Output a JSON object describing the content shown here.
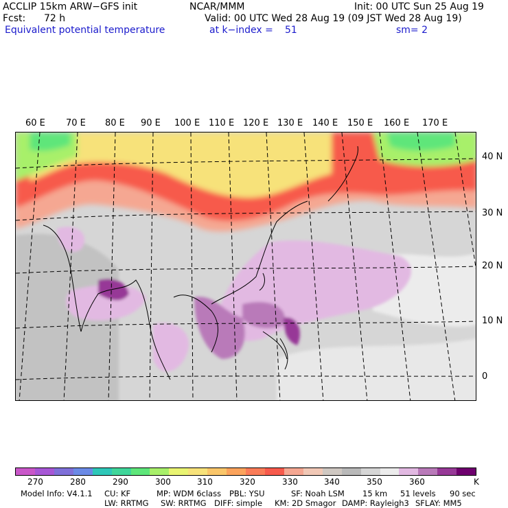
{
  "header": {
    "model_title": "ACCLIP 15km ARW−GFS init",
    "center": "NCAR/MMM",
    "init": "Init: 00 UTC Sun 25 Aug 19",
    "fcst_label": "Fcst:",
    "fcst_value": "72 h",
    "valid": "Valid: 00 UTC Wed 28 Aug 19 (09 JST Wed 28 Aug 19)",
    "field": "Equivalent potential temperature",
    "level": "at k−index =",
    "level_value": "51",
    "smoothing": "sm= 2"
  },
  "map": {
    "longitude_labels": [
      "60 E",
      "70 E",
      "80 E",
      "90 E",
      "100 E",
      "110 E",
      "120 E",
      "130 E",
      "140 E",
      "150 E",
      "160 E",
      "170 E"
    ],
    "latitude_labels": [
      "40 N",
      "30 N",
      "20 N",
      "10 N",
      "0"
    ]
  },
  "colorbar": {
    "colors": [
      "#c957c9",
      "#a757d6",
      "#7f70d9",
      "#6b8ae6",
      "#2ec7b8",
      "#3fd69a",
      "#5ee67a",
      "#a8f06a",
      "#e9f472",
      "#f7e27a",
      "#fac66a",
      "#fba35c",
      "#fa7c58",
      "#f75a4c",
      "#f5a792",
      "#f1c8b6",
      "#cfc8c2",
      "#b9b9b9",
      "#d6d6d6",
      "#ececec",
      "#e2b9e2",
      "#b97ab9",
      "#973997",
      "#6e006e"
    ],
    "labels": [
      "270",
      "280",
      "290",
      "300",
      "310",
      "320",
      "330",
      "340",
      "350",
      "360"
    ],
    "unit": "K"
  },
  "footer": {
    "line1": [
      "Model Info: V4.1.1",
      "CU: KF",
      "MP: WDM 6class",
      "PBL: YSU",
      "SF: Noah LSM",
      "15 km",
      "51 levels",
      "90 sec"
    ],
    "line2": [
      "LW: RRTMG",
      "SW: RRTMG",
      "DIFF: simple",
      "KM: 2D Smagor",
      "DAMP: Rayleigh3",
      "SFLAY: MM5"
    ]
  }
}
